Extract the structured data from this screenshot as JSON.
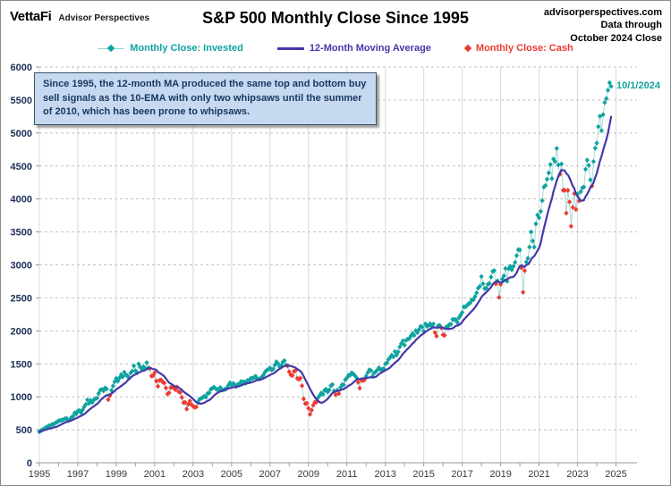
{
  "header": {
    "logo_primary": "VettaFi",
    "logo_secondary": "Advisor Perspectives",
    "title": "S&P 500 Monthly Close Since 1995",
    "source_line1": "advisorperspectives.com",
    "source_line2": "Data through",
    "source_line3": "October 2024 Close"
  },
  "legend": [
    {
      "label": "Monthly Close: Invested",
      "color": "#0fa3a0",
      "line_color": "#8fd2cf",
      "marker": "line-diamond"
    },
    {
      "label": "12-Month Moving Average",
      "color": "#4438a8",
      "marker": "line"
    },
    {
      "label": "Monthly Close: Cash",
      "color": "#ec3b33",
      "marker": "diamond"
    }
  ],
  "annotation": {
    "text": "Since 1995, the 12-month MA produced the same top and bottom buy sell signals as the 10-EMA with only two whipsaws until the summer of 2010, which has been prone to whipsaws.",
    "bg": "#c6d9f1",
    "border": "#3f5266",
    "text_color": "#17375e"
  },
  "chart_data": {
    "type": "line",
    "title": "S&P 500 Monthly Close Since 1995",
    "xlabel": "",
    "ylabel": "",
    "x_start": "1995-01",
    "x_end": "2024-10",
    "x_tick_years": [
      1995,
      1997,
      1999,
      2001,
      2003,
      2005,
      2007,
      2009,
      2011,
      2013,
      2015,
      2017,
      2019,
      2021,
      2023,
      2025
    ],
    "y_ticks": [
      0,
      500,
      1000,
      1500,
      2000,
      2500,
      3000,
      3500,
      4000,
      4500,
      5000,
      5500,
      6000
    ],
    "ylim": [
      0,
      6000
    ],
    "grid": {
      "h_color": "#c2c2c2",
      "v_color": "#d9d9d9",
      "axis_color": "#999999"
    },
    "last_point_label": "10/1/2024",
    "series": [
      {
        "name": "Monthly Close: Invested",
        "color": "#0fa3a0",
        "line_color": "#a6dbd9",
        "marker": "diamond"
      },
      {
        "name": "12-Month Moving Average",
        "color": "#4438a8",
        "style": "line"
      },
      {
        "name": "Monthly Close: Cash",
        "color": "#ec3b33",
        "marker": "diamond"
      }
    ],
    "monthly_closes": [
      470,
      487,
      501,
      515,
      533,
      545,
      562,
      562,
      584,
      582,
      605,
      616,
      636,
      640,
      646,
      654,
      669,
      671,
      640,
      652,
      687,
      705,
      757,
      741,
      786,
      791,
      757,
      801,
      848,
      885,
      954,
      899,
      947,
      915,
      955,
      970,
      980,
      1049,
      1102,
      1112,
      1091,
      1134,
      1121,
      957,
      1017,
      1099,
      1164,
      1229,
      1280,
      1238,
      1286,
      1335,
      1302,
      1373,
      1329,
      1320,
      1283,
      1363,
      1389,
      1469,
      1394,
      1366,
      1499,
      1452,
      1421,
      1455,
      1431,
      1518,
      1437,
      1429,
      1315,
      1320,
      1366,
      1240,
      1160,
      1249,
      1256,
      1224,
      1211,
      1134,
      1041,
      1060,
      1139,
      1148,
      1130,
      1107,
      1147,
      1077,
      1067,
      990,
      912,
      916,
      815,
      886,
      936,
      880,
      856,
      841,
      848,
      917,
      964,
      975,
      990,
      1008,
      996,
      1051,
      1058,
      1112,
      1131,
      1145,
      1126,
      1107,
      1121,
      1141,
      1102,
      1104,
      1115,
      1130,
      1174,
      1212,
      1181,
      1204,
      1181,
      1157,
      1192,
      1191,
      1234,
      1220,
      1229,
      1207,
      1249,
      1248,
      1280,
      1281,
      1295,
      1311,
      1270,
      1270,
      1277,
      1304,
      1336,
      1378,
      1401,
      1418,
      1438,
      1407,
      1421,
      1482,
      1531,
      1503,
      1455,
      1474,
      1527,
      1549,
      1481,
      1468,
      1379,
      1331,
      1323,
      1386,
      1400,
      1280,
      1267,
      1283,
      1166,
      969,
      896,
      903,
      826,
      735,
      798,
      873,
      919,
      919,
      987,
      1021,
      1057,
      1036,
      1096,
      1115,
      1074,
      1104,
      1169,
      1187,
      1089,
      1031,
      1102,
      1049,
      1141,
      1183,
      1181,
      1258,
      1286,
      1327,
      1326,
      1364,
      1345,
      1321,
      1292,
      1219,
      1131,
      1253,
      1247,
      1258,
      1312,
      1366,
      1408,
      1398,
      1310,
      1362,
      1379,
      1407,
      1441,
      1412,
      1416,
      1426,
      1498,
      1515,
      1569,
      1598,
      1631,
      1606,
      1686,
      1633,
      1682,
      1757,
      1806,
      1848,
      1783,
      1859,
      1872,
      1884,
      1924,
      1960,
      1931,
      2003,
      1972,
      2018,
      2068,
      2059,
      1995,
      2105,
      2068,
      2086,
      2107,
      2063,
      2104,
      1972,
      1920,
      2079,
      2080,
      2044,
      1940,
      1932,
      2060,
      2065,
      2097,
      2099,
      2174,
      2171,
      2168,
      2126,
      2199,
      2239,
      2279,
      2364,
      2363,
      2384,
      2412,
      2423,
      2470,
      2472,
      2519,
      2575,
      2648,
      2674,
      2824,
      2714,
      2641,
      2648,
      2705,
      2718,
      2816,
      2902,
      2914,
      2712,
      2760,
      2507,
      2704,
      2784,
      2834,
      2946,
      2752,
      2942,
      2980,
      2926,
      2977,
      3038,
      3141,
      3231,
      3226,
      2954,
      2585,
      2912,
      3044,
      3100,
      3271,
      3500,
      3363,
      3270,
      3622,
      3756,
      3714,
      3811,
      3973,
      4181,
      4204,
      4298,
      4395,
      4523,
      4308,
      4605,
      4567,
      4766,
      4516,
      4374,
      4530,
      4132,
      4132,
      3785,
      4130,
      3955,
      3586,
      3872,
      4080,
      3840,
      4077,
      3970,
      4109,
      4169,
      4180,
      4450,
      4589,
      4508,
      4288,
      4194,
      4568,
      4770,
      4846,
      5096,
      5254,
      5036,
      5278,
      5460,
      5522,
      5648,
      5762,
      5705
    ],
    "cash_month_indices": [
      43,
      44,
      69,
      70,
      71,
      72,
      73,
      74,
      75,
      76,
      77,
      78,
      79,
      80,
      81,
      82,
      83,
      84,
      85,
      86,
      87,
      88,
      89,
      90,
      91,
      92,
      93,
      94,
      95,
      96,
      97,
      98,
      155,
      156,
      157,
      158,
      159,
      160,
      161,
      162,
      163,
      164,
      165,
      166,
      167,
      168,
      169,
      170,
      171,
      172,
      173,
      185,
      187,
      199,
      200,
      201,
      202,
      203,
      247,
      248,
      251,
      252,
      253,
      285,
      287,
      288,
      301,
      302,
      303,
      325,
      327,
      328,
      329,
      330,
      331,
      332,
      333,
      334,
      335,
      337,
      345
    ]
  }
}
